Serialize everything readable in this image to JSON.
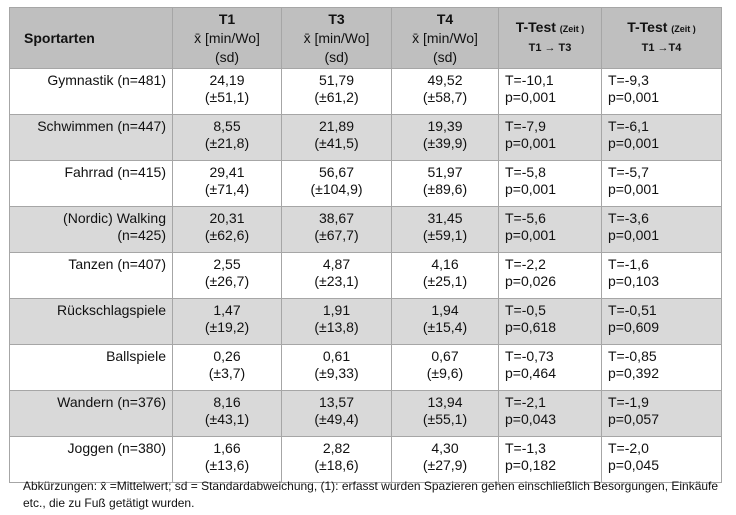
{
  "header": {
    "sport": "Sportarten",
    "t1_label": "T1",
    "t1_unit": "x̄ [min/Wo]",
    "t1_sd": "(sd)",
    "t3_label": "T3",
    "t3_unit": "x̄ [min/Wo]",
    "t3_sd": "(sd)",
    "t4_label": "T4",
    "t4_unit": "x̄ [min/Wo]",
    "t4_sd": "(sd)",
    "ttest1_label": "T-Test",
    "ttest1_sub": "(Zeit )",
    "ttest1_cmp": "T1 → T3",
    "ttest2_label": "T-Test",
    "ttest2_sub": "(Zeit )",
    "ttest2_cmp": "T1 →T4"
  },
  "rows": [
    {
      "sport1": "Gymnastik (n=481)",
      "sport2": "",
      "t1": "24,19",
      "t1sd": "(±51,1)",
      "t3": "51,79",
      "t3sd": "(±61,2)",
      "t4": "49,52",
      "t4sd": "(±58,7)",
      "tt1_t": "T=-10,1",
      "tt1_p": "p=0,001",
      "tt2_t": "T=-9,3",
      "tt2_p": "p=0,001"
    },
    {
      "sport1": "Schwimmen (n=447)",
      "sport2": "",
      "t1": "8,55",
      "t1sd": "(±21,8)",
      "t3": "21,89",
      "t3sd": "(±41,5)",
      "t4": "19,39",
      "t4sd": "(±39,9)",
      "tt1_t": "T=-7,9",
      "tt1_p": "p=0,001",
      "tt2_t": "T=-6,1",
      "tt2_p": "p=0,001"
    },
    {
      "sport1": "Fahrrad (n=415)",
      "sport2": "",
      "t1": "29,41",
      "t1sd": "(±71,4)",
      "t3": "56,67",
      "t3sd": "(±104,9)",
      "t4": "51,97",
      "t4sd": "(±89,6)",
      "tt1_t": "T=-5,8",
      "tt1_p": "p=0,001",
      "tt2_t": "T=-5,7",
      "tt2_p": "p=0,001"
    },
    {
      "sport1": "(Nordic) Walking",
      "sport2": "(n=425)",
      "t1": "20,31",
      "t1sd": "(±62,6)",
      "t3": "38,67",
      "t3sd": "(±67,7)",
      "t4": "31,45",
      "t4sd": "(±59,1)",
      "tt1_t": "T=-5,6",
      "tt1_p": "p=0,001",
      "tt2_t": "T=-3,6",
      "tt2_p": "p=0,001"
    },
    {
      "sport1": "Tanzen (n=407)",
      "sport2": "",
      "t1": "2,55",
      "t1sd": "(±26,7)",
      "t3": "4,87",
      "t3sd": "(±23,1)",
      "t4": "4,16",
      "t4sd": "(±25,1)",
      "tt1_t": "T=-2,2",
      "tt1_p": "p=0,026",
      "tt2_t": "T=-1,6",
      "tt2_p": "p=0,103"
    },
    {
      "sport1": "Rückschlagspiele",
      "sport2": "",
      "t1": "1,47",
      "t1sd": "(±19,2)",
      "t3": "1,91",
      "t3sd": "(±13,8)",
      "t4": "1,94",
      "t4sd": "(±15,4)",
      "tt1_t": "T=-0,5",
      "tt1_p": "p=0,618",
      "tt2_t": "T=-0,51",
      "tt2_p": "p=0,609"
    },
    {
      "sport1": "Ballspiele",
      "sport2": "",
      "t1": "0,26",
      "t1sd": "(±3,7)",
      "t3": "0,61",
      "t3sd": "(±9,33)",
      "t4": "0,67",
      "t4sd": "(±9,6)",
      "tt1_t": "T=-0,73",
      "tt1_p": "p=0,464",
      "tt2_t": "T=-0,85",
      "tt2_p": "p=0,392"
    },
    {
      "sport1": "Wandern (n=376)",
      "sport2": "",
      "t1": "8,16",
      "t1sd": "(±43,1)",
      "t3": "13,57",
      "t3sd": "(±49,4)",
      "t4": "13,94",
      "t4sd": "(±55,1)",
      "tt1_t": "T=-2,1",
      "tt1_p": "p=0,043",
      "tt2_t": "T=-1,9",
      "tt2_p": "p=0,057"
    },
    {
      "sport1": "Joggen (n=380)",
      "sport2": "",
      "t1": "1,66",
      "t1sd": "(±13,6)",
      "t3": "2,82",
      "t3sd": "(±18,6)",
      "t4": "4,30",
      "t4sd": "(±27,9)",
      "tt1_t": "T=-1,3",
      "tt1_p": "p=0,182",
      "tt2_t": "T=-2,0",
      "tt2_p": "p=0,045"
    }
  ],
  "footnote": "Abkürzungen: x̄ =Mittelwert; sd = Standardabweichung, (1): erfasst wurden Spazieren gehen einschließlich Besorgungen, Einkäufe etc., die zu Fuß getätigt wurden."
}
